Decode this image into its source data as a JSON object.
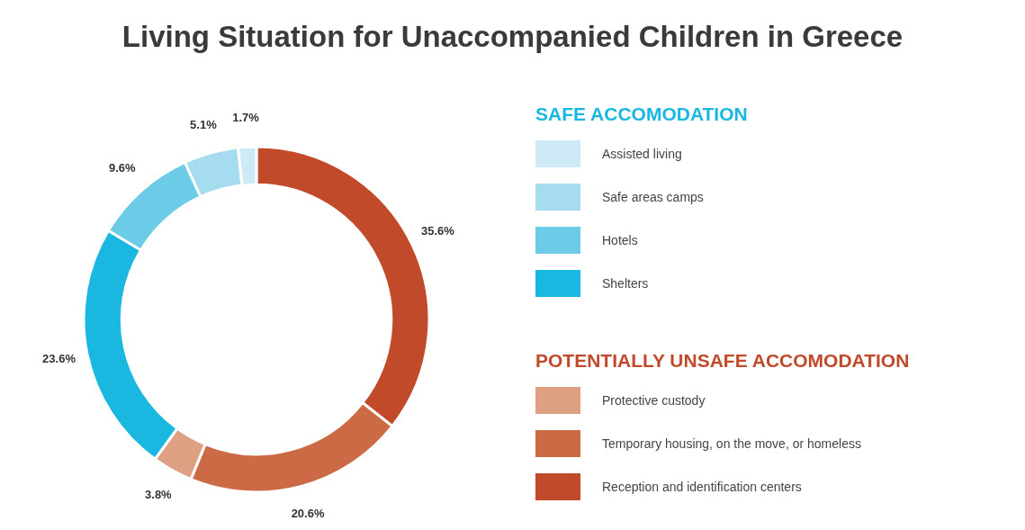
{
  "chart_data": {
    "type": "donut",
    "title": "Living Situation for Unaccompanied Children in Greece",
    "categories": [
      "Assisted living",
      "Safe areas camps",
      "Hotels",
      "Shelters",
      "Protective custody",
      "Temporary housing, on the move, or homeless",
      "Reception and identification centers"
    ],
    "values": [
      1.7,
      5.1,
      9.6,
      23.6,
      3.8,
      20.6,
      35.6
    ],
    "value_labels": [
      "1.7%",
      "5.1%",
      "9.6%",
      "23.6%",
      "3.8%",
      "20.6%",
      "35.6%"
    ],
    "colors": [
      "#cdeaf6",
      "#a6dcef",
      "#6ccbe6",
      "#1ab8e0",
      "#dea083",
      "#cc6a45",
      "#c04a2a"
    ],
    "annotations": [
      "SAFE ACCOMODATION",
      "POTENTIALLY UNSAFE ACCOMODATION"
    ],
    "legend": "right"
  }
}
